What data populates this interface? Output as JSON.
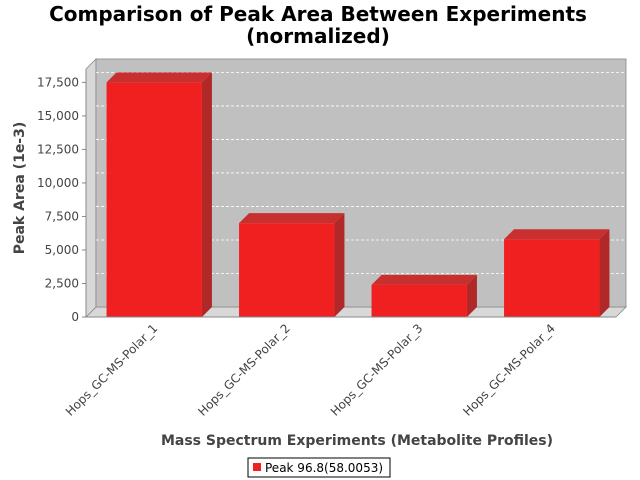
{
  "chart_data": {
    "type": "bar",
    "title_line1": "Comparison of Peak Area Between Experiments",
    "title_line2": "(normalized)",
    "xlabel": "Mass Spectrum Experiments (Metabolite Profiles)",
    "ylabel": "Peak Area (1e-3)",
    "categories": [
      "Hops_GC-MS-Polar_1",
      "Hops_GC-MS-Polar_2",
      "Hops_GC-MS-Polar_3",
      "Hops_GC-MS-Polar_4"
    ],
    "series": [
      {
        "name": "Peak 96.8(58.0053)",
        "values": [
          17500,
          7000,
          2400,
          5800
        ],
        "color": "#f02020"
      }
    ],
    "ylim": [
      0,
      18500
    ],
    "yticks": [
      0,
      2500,
      5000,
      7500,
      10000,
      12500,
      15000,
      17500
    ],
    "ytick_labels": [
      "0",
      "2,500",
      "5,000",
      "7,500",
      "10,000",
      "12,500",
      "15,000",
      "17,500"
    ],
    "grid": true,
    "legend_position": "bottom",
    "plot_background": "#c0c0c0"
  }
}
